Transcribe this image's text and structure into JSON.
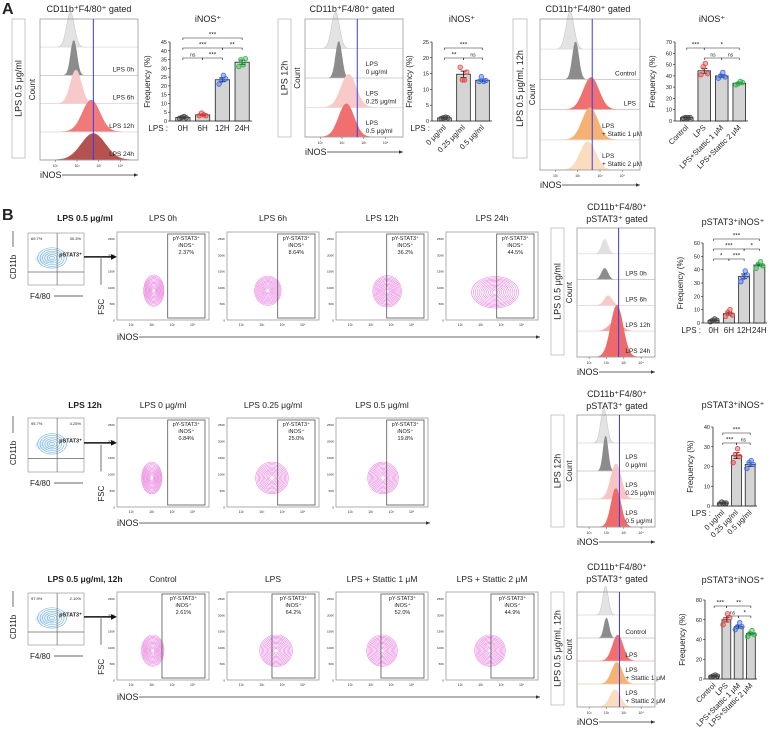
{
  "panels": {
    "A": "A",
    "B": "B"
  },
  "axis_labels": {
    "inos": "iNOS",
    "count": "Count",
    "fsc": "FSC",
    "cd11b": "CD11b",
    "f480": "F4/80",
    "freq": "Frequency (%)",
    "pstat3": "pSTAT3⁺"
  },
  "hist_ticks": [
    "10¹",
    "10²",
    "10³",
    "10⁴"
  ],
  "fsc_ticks": [
    "250K",
    "200K",
    "150K",
    "100K",
    "50K",
    "0"
  ],
  "colors": {
    "marker_line": "#3b3bf0",
    "contour": "#e46ad9",
    "gating": "#4a9be0",
    "bar_fill": "#d4d4d4"
  },
  "histograms": [
    {
      "title": [
        "CD11b⁺F4/80⁺ gated"
      ],
      "condition": "LPS   0.5 μg/ml",
      "marker": 2.75,
      "rows": [
        {
          "label": [],
          "color": "#e3e3e3",
          "peak": 1.7,
          "width": 0.18,
          "amp": 1.0
        },
        {
          "label": [
            "LPS 0h"
          ],
          "color": "#8c8c8c",
          "peak": 1.85,
          "width": 0.14,
          "amp": 1.0
        },
        {
          "label": [
            "LPS 6h"
          ],
          "color": "#f8c9c9",
          "peak": 1.95,
          "width": 0.25,
          "amp": 0.95
        },
        {
          "label": [
            "LPS 12h"
          ],
          "color": "#f07a7a",
          "peak": 2.65,
          "width": 0.4,
          "amp": 0.9
        },
        {
          "label": [
            "LPS 24h"
          ],
          "color": "#b5524f",
          "peak": 2.75,
          "width": 0.55,
          "amp": 0.75
        }
      ]
    },
    {
      "title": [
        "CD11b⁺F4/80⁺ gated"
      ],
      "condition": "LPS   12h",
      "marker": 2.7,
      "rows": [
        {
          "label": [],
          "color": "#e3e3e3",
          "peak": 1.7,
          "width": 0.18,
          "amp": 1.0
        },
        {
          "label": [
            "LPS",
            "0 μg/ml"
          ],
          "color": "#8c8c8c",
          "peak": 1.85,
          "width": 0.14,
          "amp": 1.0
        },
        {
          "label": [
            "LPS",
            "0.25 μg/ml"
          ],
          "color": "#f8c9c9",
          "peak": 2.3,
          "width": 0.35,
          "amp": 0.9
        },
        {
          "label": [
            "LPS",
            "0.5 μg/ml"
          ],
          "color": "#f07070",
          "peak": 2.2,
          "width": 0.35,
          "amp": 0.9
        }
      ]
    },
    {
      "title": [
        "CD11b⁺F4/80⁺ gated"
      ],
      "condition": "LPS   0.5 μg/ml, 12h",
      "marker": 2.65,
      "rows": [
        {
          "label": [],
          "color": "#e3e3e3",
          "peak": 1.65,
          "width": 0.18,
          "amp": 1.0
        },
        {
          "label": [
            "Control"
          ],
          "color": "#8c8c8c",
          "peak": 1.9,
          "width": 0.14,
          "amp": 1.0
        },
        {
          "label": [
            "LPS"
          ],
          "color": "#f07070",
          "peak": 2.6,
          "width": 0.35,
          "amp": 0.85
        },
        {
          "label": [
            "LPS",
            "+ Stattic 1 μM"
          ],
          "color": "#f5b274",
          "peak": 2.55,
          "width": 0.35,
          "amp": 0.85
        },
        {
          "label": [
            "LPS",
            "+ Stattic 2 μM"
          ],
          "color": "#fbdcbc",
          "peak": 2.45,
          "width": 0.35,
          "amp": 0.75
        }
      ]
    },
    {
      "title": [
        "CD11b⁺F4/80⁺",
        "pSTAT3⁺ gated"
      ],
      "condition": "LPS   0.5 μg/ml",
      "marker": 2.7,
      "rows": [
        {
          "label": [],
          "color": "#e0e0e0",
          "peak": 1.9,
          "width": 0.18,
          "amp": 0.45
        },
        {
          "label": [
            "LPS 0h"
          ],
          "color": "#8c8c8c",
          "peak": 1.9,
          "width": 0.18,
          "amp": 0.35
        },
        {
          "label": [
            "LPS 6h"
          ],
          "color": "#f8c9c9",
          "peak": 2.1,
          "width": 0.22,
          "amp": 0.3
        },
        {
          "label": [
            "LPS 12h"
          ],
          "color": "#f5a8a8",
          "peak": 2.5,
          "width": 0.35,
          "amp": 0.3
        },
        {
          "label": [
            "LPS 24h"
          ],
          "color": "#ee6a6a",
          "peak": 2.6,
          "width": 0.35,
          "amp": 1.6
        }
      ]
    },
    {
      "title": [
        "CD11b⁺F4/80⁺",
        "pSTAT3⁺ gated"
      ],
      "condition": "LPS   12h",
      "marker": 2.75,
      "rows": [
        {
          "label": [],
          "color": "#e3e3e3",
          "peak": 1.85,
          "width": 0.18,
          "amp": 1.0
        },
        {
          "label": [
            "LPS",
            "0 μg/ml"
          ],
          "color": "#8c8c8c",
          "peak": 1.95,
          "width": 0.14,
          "amp": 1.0
        },
        {
          "label": [
            "LPS",
            "0.25 μg/ml"
          ],
          "color": "#f8c4c4",
          "peak": 2.55,
          "width": 0.3,
          "amp": 1.0
        },
        {
          "label": [
            "LPS",
            "0.5 μg/ml"
          ],
          "color": "#f06a6a",
          "peak": 2.55,
          "width": 0.28,
          "amp": 1.1
        }
      ]
    },
    {
      "title": [
        "CD11b⁺F4/80⁺",
        "pSTAT3⁺ gated"
      ],
      "condition": "LPS   0.5 μg/ml, 12h",
      "marker": 2.75,
      "rows": [
        {
          "label": [],
          "color": "#e3e3e3",
          "peak": 1.95,
          "width": 0.16,
          "amp": 1.0
        },
        {
          "label": [
            "Control"
          ],
          "color": "#8c8c8c",
          "peak": 2.0,
          "width": 0.14,
          "amp": 0.7
        },
        {
          "label": [
            "LPS"
          ],
          "color": "#f07070",
          "peak": 2.65,
          "width": 0.3,
          "amp": 0.9
        },
        {
          "label": [
            "LPS",
            "+ Stattic 1 μM"
          ],
          "color": "#f5b274",
          "peak": 2.6,
          "width": 0.3,
          "amp": 0.75
        },
        {
          "label": [
            "LPS",
            "+ Stattic 2 μM"
          ],
          "color": "#fbdcbc",
          "peak": 2.5,
          "width": 0.3,
          "amp": 0.6
        }
      ]
    }
  ],
  "chart_data": [
    {
      "type": "bar",
      "title": "iNOS⁺",
      "ylabel": "Frequency (%)",
      "ylim": [
        0,
        45
      ],
      "yticks": [
        0,
        5,
        10,
        15,
        20,
        25,
        30,
        35,
        40,
        45
      ],
      "prefix": "LPS :",
      "rotate": false,
      "categories": [
        "0H",
        "6H",
        "12H",
        "24H"
      ],
      "values": [
        2,
        3.5,
        23.5,
        33.5
      ],
      "sem": [
        0.3,
        0.5,
        1.1,
        1.2
      ],
      "points": [
        [
          1.5,
          2,
          2.5,
          1.8
        ],
        [
          3,
          4.5,
          3.5,
          3
        ],
        [
          21,
          23,
          26,
          24
        ],
        [
          31,
          35,
          32,
          35.5
        ]
      ],
      "point_colors": [
        "#444444",
        "#e84545",
        "#3f6de8",
        "#2fb84a"
      ],
      "significance": [
        {
          "a": 0,
          "b": 3,
          "label": "***",
          "level": 3
        },
        {
          "a": 0,
          "b": 2,
          "label": "***",
          "level": 2
        },
        {
          "a": 2,
          "b": 3,
          "label": "**",
          "level": 2
        },
        {
          "a": 0,
          "b": 1,
          "label": "ns",
          "level": 1
        },
        {
          "a": 1,
          "b": 2,
          "label": "***",
          "level": 1
        }
      ]
    },
    {
      "type": "bar",
      "title": "iNOS⁺",
      "ylabel": "Frequency (%)",
      "ylim": [
        0,
        25
      ],
      "yticks": [
        0,
        5,
        10,
        15,
        20,
        25
      ],
      "prefix": "LPS :",
      "rotate": true,
      "categories": [
        "0 μg/ml",
        "0.25 μg/ml",
        "0.5 μg/ml"
      ],
      "values": [
        1,
        14.8,
        12.9
      ],
      "sem": [
        0.1,
        1.0,
        0.4
      ],
      "points": [
        [
          0.8,
          1,
          1.2,
          1
        ],
        [
          17,
          13,
          13,
          15.5
        ],
        [
          12.5,
          14,
          12.5,
          12.8
        ]
      ],
      "point_colors": [
        "#444444",
        "#e84545",
        "#3f6de8"
      ],
      "significance": [
        {
          "a": 0,
          "b": 2,
          "label": "***",
          "level": 2
        },
        {
          "a": 0,
          "b": 1,
          "label": "**",
          "level": 1
        },
        {
          "a": 1,
          "b": 2,
          "label": "ns",
          "level": 1
        }
      ]
    },
    {
      "type": "bar",
      "title": "iNOS⁺",
      "ylabel": "Frequency (%)",
      "ylim": [
        0,
        70
      ],
      "yticks": [
        0,
        10,
        20,
        30,
        40,
        50,
        60,
        70
      ],
      "prefix": "",
      "rotate": true,
      "categories": [
        "Control",
        "LPS",
        "LPS+Stattic 1 μM",
        "LPS+Stattic 2 μM"
      ],
      "values": [
        3,
        44.5,
        40,
        33.5
      ],
      "sem": [
        0.3,
        2.2,
        1.2,
        0.7
      ],
      "points": [
        [
          2.5,
          3,
          2.8,
          3.2
        ],
        [
          41,
          48,
          51,
          42
        ],
        [
          38,
          40,
          43,
          39
        ],
        [
          32,
          33,
          35,
          34
        ]
      ],
      "point_colors": [
        "#444444",
        "#e84545",
        "#3f6de8",
        "#2fb84a"
      ],
      "significance": [
        {
          "a": 0,
          "b": 1,
          "label": "***",
          "level": 2
        },
        {
          "a": 1,
          "b": 3,
          "label": "*",
          "level": 2
        },
        {
          "a": 1,
          "b": 2,
          "label": "ns",
          "level": 1
        },
        {
          "a": 2,
          "b": 3,
          "label": "ns",
          "level": 1
        }
      ]
    },
    {
      "type": "bar",
      "title": "pSTAT3⁺iNOS⁺",
      "ylabel": "Frequency (%)",
      "ylim": [
        0,
        60
      ],
      "yticks": [
        0,
        10,
        20,
        30,
        40,
        50,
        60
      ],
      "prefix": "LPS :",
      "rotate": false,
      "categories": [
        "0H",
        "6H",
        "12H",
        "24H"
      ],
      "values": [
        2,
        7,
        35,
        43.5
      ],
      "sem": [
        0.4,
        1.1,
        1.8,
        0.8
      ],
      "points": [
        [
          1,
          2,
          3,
          2
        ],
        [
          5,
          8,
          10,
          6
        ],
        [
          31,
          34,
          39,
          36
        ],
        [
          41,
          44,
          46,
          43
        ]
      ],
      "point_colors": [
        "#444444",
        "#e84545",
        "#3f6de8",
        "#2fb84a"
      ],
      "significance": [
        {
          "a": 0,
          "b": 3,
          "label": "***",
          "level": 3
        },
        {
          "a": 0,
          "b": 2,
          "label": "***",
          "level": 2
        },
        {
          "a": 2,
          "b": 3,
          "label": "*",
          "level": 2
        },
        {
          "a": 0,
          "b": 1,
          "label": "*",
          "level": 1
        },
        {
          "a": 1,
          "b": 2,
          "label": "***",
          "level": 1
        }
      ]
    },
    {
      "type": "bar",
      "title": "pSTAT3⁺iNOS⁺",
      "ylabel": "Frequency (%)",
      "ylim": [
        0,
        40
      ],
      "yticks": [
        0,
        10,
        20,
        30,
        40
      ],
      "prefix": "LPS :",
      "rotate": true,
      "categories": [
        "0 μg/ml",
        "0.25 μg/ml",
        "0.5 μg/ml"
      ],
      "values": [
        1.5,
        25.5,
        21
      ],
      "sem": [
        0.2,
        1.5,
        0.9
      ],
      "points": [
        [
          1,
          2,
          1.5,
          1.5
        ],
        [
          22,
          26,
          29,
          25
        ],
        [
          19,
          22,
          23,
          21
        ]
      ],
      "point_colors": [
        "#444444",
        "#e84545",
        "#3f6de8"
      ],
      "significance": [
        {
          "a": 0,
          "b": 2,
          "label": "***",
          "level": 2
        },
        {
          "a": 0,
          "b": 1,
          "label": "***",
          "level": 1
        },
        {
          "a": 1,
          "b": 2,
          "label": "ns",
          "level": 1
        }
      ]
    },
    {
      "type": "bar",
      "title": "pSTAT3⁺iNOS⁺",
      "ylabel": "Frequency (%)",
      "ylim": [
        0,
        80
      ],
      "yticks": [
        0,
        20,
        40,
        60,
        80
      ],
      "prefix": "",
      "rotate": true,
      "categories": [
        "Control",
        "LPS",
        "LPS+Stattic 1 μM",
        "LPS+Stattic 2 μM"
      ],
      "values": [
        3,
        60,
        53,
        46
      ],
      "sem": [
        0.5,
        2.3,
        1.5,
        1.2
      ],
      "points": [
        [
          2,
          3,
          4,
          3
        ],
        [
          55,
          60,
          66,
          62
        ],
        [
          50,
          53,
          57,
          53
        ],
        [
          43,
          46,
          49,
          45
        ]
      ],
      "point_colors": [
        "#444444",
        "#e84545",
        "#3f6de8",
        "#2fb84a"
      ],
      "significance": [
        {
          "a": 0,
          "b": 1,
          "label": "***",
          "level": 2
        },
        {
          "a": 1,
          "b": 3,
          "label": "**",
          "level": 2
        },
        {
          "a": 1,
          "b": 2,
          "label": "ns",
          "level": 1
        },
        {
          "a": 2,
          "b": 3,
          "label": "*",
          "level": 1
        }
      ]
    }
  ],
  "flow_rows": [
    {
      "title": "LPS 0.5 μg/ml",
      "gating": {
        "q_left": "69.7%",
        "q_right": "30.3%"
      },
      "gate": 2.78,
      "plots": [
        {
          "title": "LPS 0h",
          "gate_text": [
            "pY-STAT3⁺",
            "iNOS⁺",
            "2.37%"
          ],
          "center": [
            2.1,
            90
          ],
          "spread": [
            0.45,
            45
          ]
        },
        {
          "title": "LPS 6h",
          "gate_text": [
            "pY-STAT3⁺",
            "iNOS⁺",
            "8.64%"
          ],
          "center": [
            2.3,
            90
          ],
          "spread": [
            0.6,
            42
          ]
        },
        {
          "title": "LPS 12h",
          "gate_text": [
            "pY-STAT3⁺",
            "iNOS⁺",
            "36.2%"
          ],
          "center": [
            2.8,
            88
          ],
          "spread": [
            0.65,
            45
          ]
        },
        {
          "title": "LPS 24h",
          "gate_text": [
            "pY-STAT3⁺",
            "iNOS⁺",
            "44.5%"
          ],
          "center": [
            2.7,
            85
          ],
          "spread": [
            1.1,
            45
          ]
        }
      ]
    },
    {
      "title": "LPS 12h",
      "gating": {
        "q_left": "95.7%",
        "q_right": "4.25%"
      },
      "gate": 2.78,
      "plots": [
        {
          "title": "LPS 0 μg/ml",
          "gate_text": [
            "pY-STAT3⁺",
            "iNOS⁺",
            "0.84%"
          ],
          "center": [
            2.0,
            88
          ],
          "spread": [
            0.45,
            45
          ]
        },
        {
          "title": "LPS 0.25 μg/ml",
          "gate_text": [
            "pY-STAT3⁺",
            "iNOS⁺",
            "25.0%"
          ],
          "center": [
            2.5,
            88
          ],
          "spread": [
            0.75,
            45
          ]
        },
        {
          "title": "LPS 0.5 μg/ml",
          "gate_text": [
            "pY-STAT3⁺",
            "iNOS⁺",
            "19.8%"
          ],
          "center": [
            2.6,
            88
          ],
          "spread": [
            0.7,
            45
          ]
        }
      ]
    },
    {
      "title": "LPS 0.5 μg/ml, 12h",
      "gating": {
        "q_left": "97.9%",
        "q_right": "2.10%"
      },
      "gate": 2.5,
      "plots": [
        {
          "title": "Control",
          "gate_text": [
            "pY-STAT3⁺",
            "iNOS⁺",
            "2.61%"
          ],
          "center": [
            2.05,
            90
          ],
          "spread": [
            0.5,
            45
          ]
        },
        {
          "title": "LPS",
          "gate_text": [
            "pY-STAT3⁺",
            "iNOS⁺",
            "64.2%"
          ],
          "center": [
            2.7,
            90
          ],
          "spread": [
            0.75,
            45
          ]
        },
        {
          "title": "LPS + Stattic 1 μM",
          "gate_text": [
            "pY-STAT3⁺",
            "iNOS⁺",
            "52.0%"
          ],
          "center": [
            2.55,
            90
          ],
          "spread": [
            0.7,
            45
          ]
        },
        {
          "title": "LPS + Stattic 2 μM",
          "gate_text": [
            "pY-STAT3⁺",
            "iNOS⁺",
            "44.9%"
          ],
          "center": [
            2.45,
            90
          ],
          "spread": [
            0.7,
            45
          ]
        }
      ]
    }
  ]
}
